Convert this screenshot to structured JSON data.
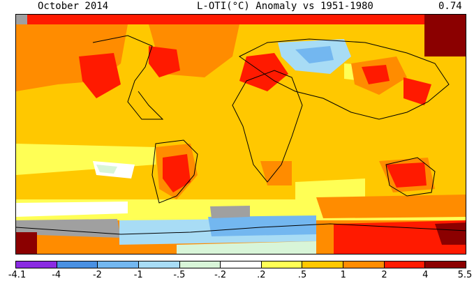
{
  "header": {
    "date": "October 2014",
    "title": "L-OTI(°C) Anomaly vs 1951-1980",
    "global_mean": "0.74"
  },
  "legend": {
    "ticks": [
      "-4.1",
      "-4",
      "-2",
      "-1",
      "-.5",
      "-.2",
      ".2",
      ".5",
      "1",
      "2",
      "4",
      "5.5"
    ],
    "colors": [
      "#8a2be2",
      "#4a90e2",
      "#73b7f0",
      "#a8dcf5",
      "#d8f5d8",
      "#ffffff",
      "#ffff55",
      "#ffc800",
      "#ff8c00",
      "#ff1a00",
      "#8b0000"
    ]
  },
  "palette": {
    "missing": "#a0a0a0",
    "coast": "#000000",
    "frame": "#000000"
  }
}
